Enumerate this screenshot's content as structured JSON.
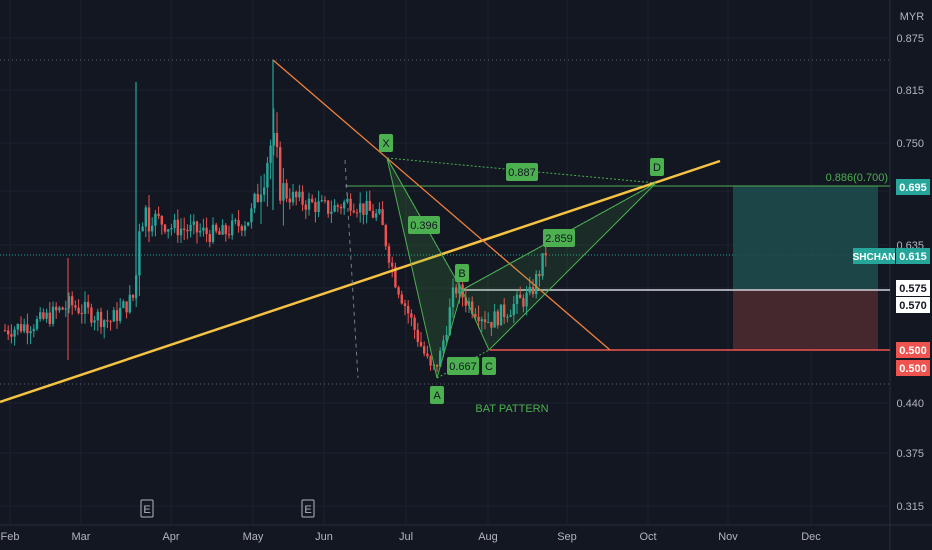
{
  "colors": {
    "background": "#131722",
    "grid": "#1e222d",
    "axis_text": "#b2b5be",
    "up": "#26a69a",
    "down": "#ef5350",
    "trendline": "#f5c242",
    "orange_line": "#f0803c",
    "pattern": "#4caf50",
    "target_zone": "#1f4e4e",
    "stop_zone": "#4a2a30"
  },
  "chart_data": {
    "type": "candlestick",
    "currency": "MYR",
    "ticker": "SHCHAN",
    "y_ticks": [
      "0.875",
      "0.815",
      "0.750",
      "0.695",
      "0.635",
      "0.575",
      "0.500",
      "0.440",
      "0.375",
      "0.315"
    ],
    "x_ticks": [
      "Feb",
      "Mar",
      "Apr",
      "May",
      "Jun",
      "Jul",
      "Aug",
      "Sep",
      "Oct",
      "Nov",
      "Dec"
    ],
    "price_tags": [
      {
        "label": "0.695",
        "bg": "#26a69a",
        "fg": "#ffffff"
      },
      {
        "label": "0.615",
        "bg": "#26a69a",
        "fg": "#ffffff",
        "prefix": "SHCHAN"
      },
      {
        "label": "0.575",
        "bg": "#ffffff",
        "fg": "#131722"
      },
      {
        "label": "0.570",
        "bg": "#ffffff",
        "fg": "#131722"
      },
      {
        "label": "0.500",
        "bg": "#ef5350",
        "fg": "#ffffff"
      },
      {
        "label": "0.500",
        "bg": "#ef5350",
        "fg": "#ffffff"
      }
    ],
    "fib_label": "0.886(0.700)",
    "pattern": {
      "name": "BAT PATTERN",
      "points": [
        {
          "label": "X",
          "price": 0.734
        },
        {
          "label": "A",
          "price": 0.465
        },
        {
          "label": "B",
          "price": 0.572
        },
        {
          "label": "C",
          "price": 0.505
        },
        {
          "label": "D",
          "price": 0.7
        }
      ],
      "ratios": [
        "0.887",
        "0.396",
        "0.667",
        "2.859"
      ]
    },
    "earnings_markers": [
      "E",
      "E"
    ],
    "candles_sample": [
      {
        "month": "Feb",
        "close": 0.52
      },
      {
        "month": "Mar",
        "close": 0.55
      },
      {
        "month": "Apr",
        "close": 0.63
      },
      {
        "month": "May",
        "close": 0.67
      },
      {
        "month": "Jun",
        "close": 0.66
      },
      {
        "month": "Jul",
        "close": 0.52
      },
      {
        "month": "Aug",
        "close": 0.56
      },
      {
        "month": "Aug-end",
        "close": 0.615
      }
    ]
  }
}
